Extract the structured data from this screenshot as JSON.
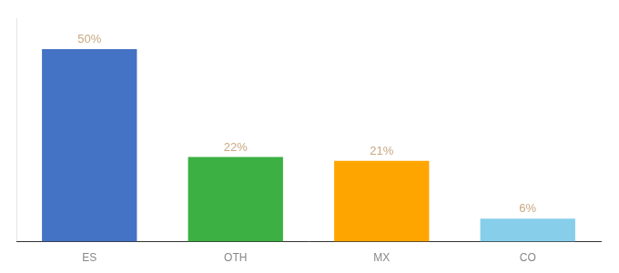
{
  "chart_data": {
    "type": "bar",
    "categories": [
      "ES",
      "OTH",
      "MX",
      "CO"
    ],
    "values": [
      50,
      22,
      21,
      6
    ],
    "value_labels": [
      "50%",
      "22%",
      "21%",
      "6%"
    ],
    "colors": [
      "#4472C4",
      "#3CB043",
      "#FFA500",
      "#87CEEB"
    ],
    "data_labels": true,
    "ylim": [
      0,
      58
    ],
    "tick_labels": "x",
    "grid": false
  }
}
